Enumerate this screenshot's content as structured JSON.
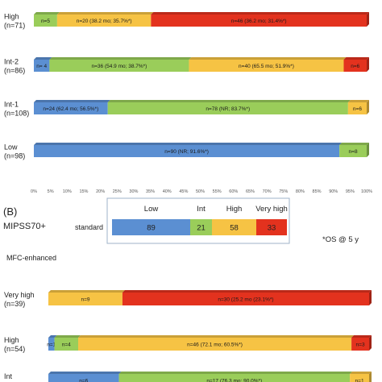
{
  "colors": {
    "low": "#5b8fd2",
    "int": "#9acd5a",
    "high": "#f6c344",
    "very_high": "#e3321e"
  },
  "chart_data": [
    {
      "type": "bar",
      "orientation": "horizontal",
      "stacked": "percent",
      "x_ticks": [
        "0%",
        "5%",
        "10%",
        "15%",
        "20%",
        "25%",
        "30%",
        "35%",
        "40%",
        "45%",
        "50%",
        "55%",
        "60%",
        "65%",
        "70%",
        "75%",
        "80%",
        "85%",
        "90%",
        "95%",
        "100%"
      ],
      "xlim": [
        0,
        100
      ],
      "rows": [
        {
          "label": "High",
          "n": "(n=71)",
          "segments": [
            {
              "tier": "int",
              "value": 7.0,
              "text": "n=5"
            },
            {
              "tier": "high",
              "value": 28.2,
              "text": "n=20 (38.2 mo; 35.7%*)"
            },
            {
              "tier": "very_high",
              "value": 64.8,
              "text": "n=46 (36.2 mo; 31.4%*)"
            }
          ]
        },
        {
          "label": "Int-2",
          "n": "(n=86)",
          "segments": [
            {
              "tier": "low",
              "value": 4.7,
              "text": "n= 4"
            },
            {
              "tier": "int",
              "value": 41.9,
              "text": "n=36 (54.9 mo; 38.7%*)"
            },
            {
              "tier": "high",
              "value": 46.5,
              "text": "n=40 (65.5 mo; 51.9%*)"
            },
            {
              "tier": "very_high",
              "value": 6.9,
              "text": "n=6"
            }
          ]
        },
        {
          "label": "Int-1",
          "n": "(n=108)",
          "segments": [
            {
              "tier": "low",
              "value": 22.2,
              "text": "n=24 (62.4 mo; 56.5%*)"
            },
            {
              "tier": "int",
              "value": 72.2,
              "text": "n=78 (NR; 83.7%*)"
            },
            {
              "tier": "high",
              "value": 5.6,
              "text": "n=6"
            }
          ]
        },
        {
          "label": "Low",
          "n": "(n=98)",
          "segments": [
            {
              "tier": "low",
              "value": 91.8,
              "text": "n=90 (NR; 91.6%*)"
            },
            {
              "tier": "int",
              "value": 8.2,
              "text": "n=8"
            }
          ]
        }
      ]
    },
    {
      "type": "bar",
      "orientation": "horizontal",
      "stacked": "percent",
      "xlim": [
        0,
        100
      ],
      "rows": [
        {
          "label": "Very high",
          "n": "(n=39)",
          "segments": [
            {
              "tier": "high",
              "value": 23.1,
              "text": "n=9"
            },
            {
              "tier": "very_high",
              "value": 76.9,
              "text": "n=30 (25.2 mo (23.1%*)"
            }
          ]
        },
        {
          "label": "High",
          "n": "(n=54)",
          "segments": [
            {
              "tier": "low",
              "value": 1.9,
              "text": "n=1"
            },
            {
              "tier": "int",
              "value": 7.4,
              "text": "n=4"
            },
            {
              "tier": "high",
              "value": 85.2,
              "text": "n=46 (72.1 mo; 60.5%*)"
            },
            {
              "tier": "very_high",
              "value": 5.5,
              "text": "n=3"
            }
          ]
        },
        {
          "label": "Int",
          "n": "",
          "segments": [
            {
              "tier": "low",
              "value": 22.0,
              "text": "n=6"
            },
            {
              "tier": "int",
              "value": 72.0,
              "text": "n=17 (76.3 mo; 90.0%*)"
            },
            {
              "tier": "high",
              "value": 6.0,
              "text": "n=1"
            }
          ]
        }
      ]
    }
  ],
  "legend_table": {
    "section_label": "(B)",
    "system_label": "MIPSS70+",
    "headers": [
      {
        "tier": "low",
        "text": "Low"
      },
      {
        "tier": "int",
        "text": "Int"
      },
      {
        "tier": "high",
        "text": "High"
      },
      {
        "tier": "very_high",
        "text": "Very high"
      }
    ],
    "row_label": "standard",
    "cells": [
      {
        "tier": "low",
        "value": 89
      },
      {
        "tier": "int",
        "value": 21
      },
      {
        "tier": "high",
        "value": 58
      },
      {
        "tier": "very_high",
        "value": 33
      }
    ]
  },
  "note": "*OS @ 5 y",
  "mfc_label": "MFC-enhanced"
}
